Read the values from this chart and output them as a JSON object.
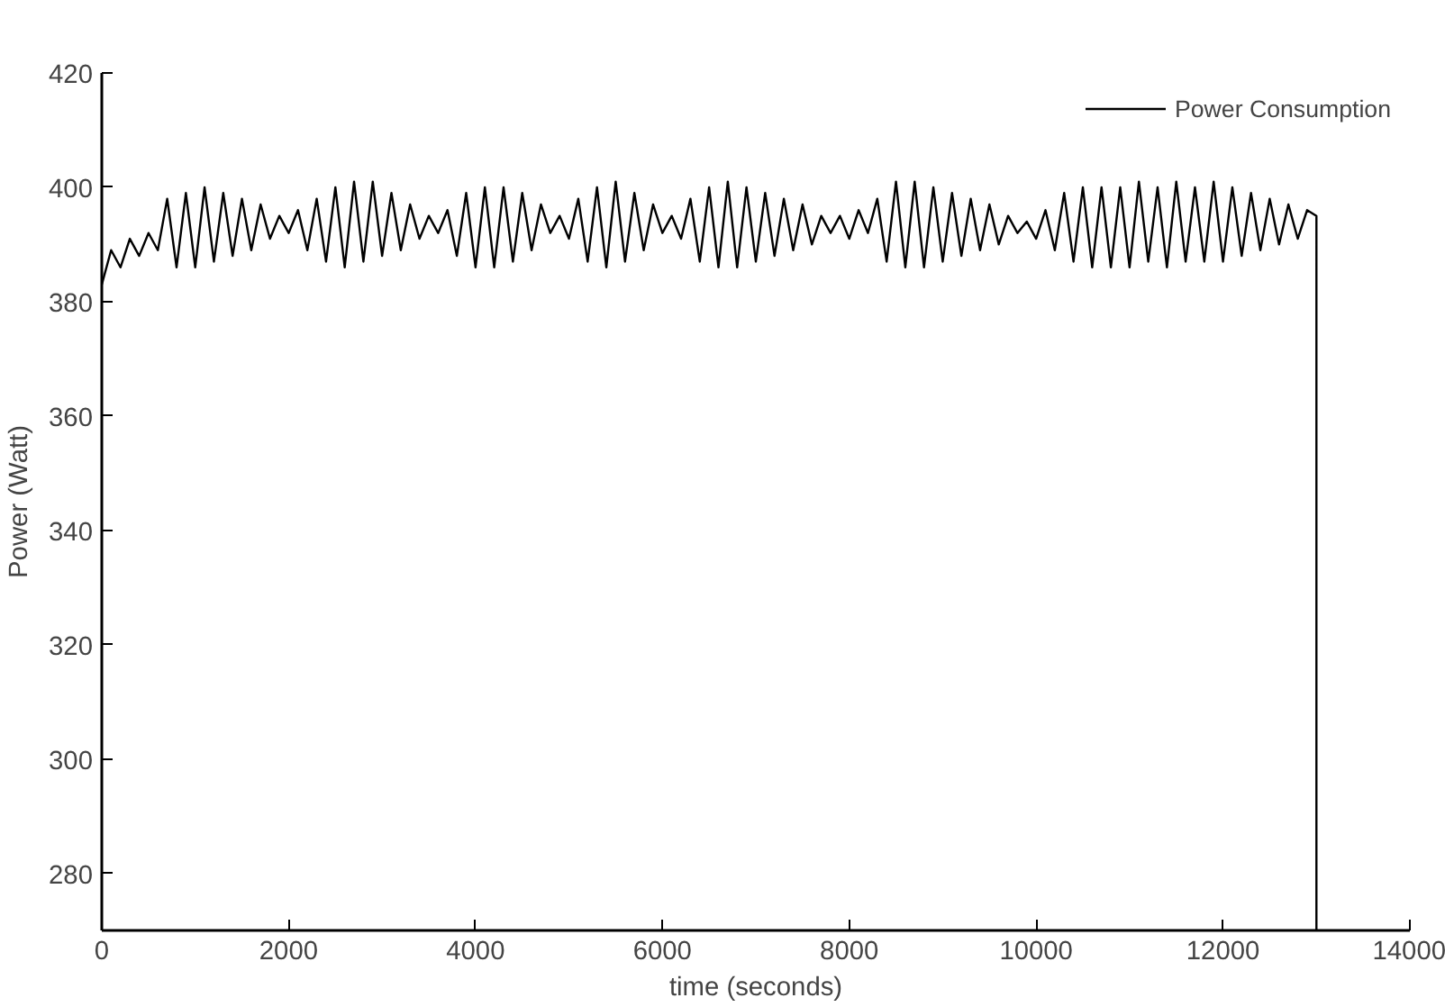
{
  "chart_data": {
    "type": "line",
    "xlabel": "time (seconds)",
    "ylabel": "Power (Watt)",
    "x": [
      0,
      100,
      200,
      300,
      400,
      500,
      600,
      700,
      800,
      900,
      1000,
      1100,
      1200,
      1300,
      1400,
      1500,
      1600,
      1700,
      1800,
      1900,
      2000,
      2100,
      2200,
      2300,
      2400,
      2500,
      2600,
      2700,
      2800,
      2900,
      3000,
      3100,
      3200,
      3300,
      3400,
      3500,
      3600,
      3700,
      3800,
      3900,
      4000,
      4100,
      4200,
      4300,
      4400,
      4500,
      4600,
      4700,
      4800,
      4900,
      5000,
      5100,
      5200,
      5300,
      5400,
      5500,
      5600,
      5700,
      5800,
      5900,
      6000,
      6100,
      6200,
      6300,
      6400,
      6500,
      6600,
      6700,
      6800,
      6900,
      7000,
      7100,
      7200,
      7300,
      7400,
      7500,
      7600,
      7700,
      7800,
      7900,
      8000,
      8100,
      8200,
      8300,
      8400,
      8500,
      8600,
      8700,
      8800,
      8900,
      9000,
      9100,
      9200,
      9300,
      9400,
      9500,
      9600,
      9700,
      9800,
      9900,
      10000,
      10100,
      10200,
      10300,
      10400,
      10500,
      10600,
      10700,
      10800,
      10900,
      11000,
      11100,
      11200,
      11300,
      11400,
      11500,
      11600,
      11700,
      11800,
      11900,
      12000,
      12100,
      12200,
      12300,
      12400,
      12500,
      12600,
      12700,
      12800,
      12900,
      13000,
      13000
    ],
    "series": [
      {
        "name": "Power Consumption",
        "color": "#000000",
        "values": [
          383,
          389,
          386,
          391,
          388,
          392,
          389,
          398,
          386,
          399,
          386,
          400,
          387,
          399,
          388,
          398,
          389,
          397,
          391,
          395,
          392,
          396,
          389,
          398,
          387,
          400,
          386,
          401,
          387,
          401,
          388,
          399,
          389,
          397,
          391,
          395,
          392,
          396,
          388,
          399,
          386,
          400,
          386,
          400,
          387,
          399,
          389,
          397,
          392,
          395,
          391,
          398,
          387,
          400,
          386,
          401,
          387,
          399,
          389,
          397,
          392,
          395,
          391,
          398,
          387,
          400,
          386,
          401,
          386,
          400,
          387,
          399,
          388,
          398,
          389,
          397,
          390,
          395,
          392,
          395,
          391,
          396,
          392,
          398,
          387,
          401,
          386,
          401,
          386,
          400,
          387,
          399,
          388,
          398,
          389,
          397,
          390,
          395,
          392,
          394,
          391,
          396,
          389,
          399,
          387,
          400,
          386,
          400,
          386,
          400,
          386,
          401,
          387,
          400,
          386,
          401,
          387,
          400,
          387,
          401,
          387,
          400,
          388,
          399,
          389,
          398,
          390,
          397,
          391,
          396,
          395,
          270
        ]
      }
    ],
    "xlim": [
      0,
      14000
    ],
    "ylim": [
      270,
      420
    ],
    "xticks": [
      0,
      2000,
      4000,
      6000,
      8000,
      10000,
      12000,
      14000
    ],
    "yticks": [
      280,
      300,
      320,
      340,
      360,
      380,
      400,
      420
    ],
    "grid": false,
    "legend": "top right",
    "marker": "none",
    "line_style": "solid"
  }
}
